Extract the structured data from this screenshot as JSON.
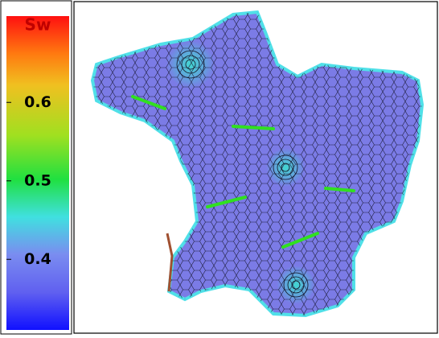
{
  "colorbar": {
    "title": "Sw",
    "range": [
      0.31,
      0.71
    ],
    "ticks": [
      0.4,
      0.5,
      0.6
    ]
  }
}
